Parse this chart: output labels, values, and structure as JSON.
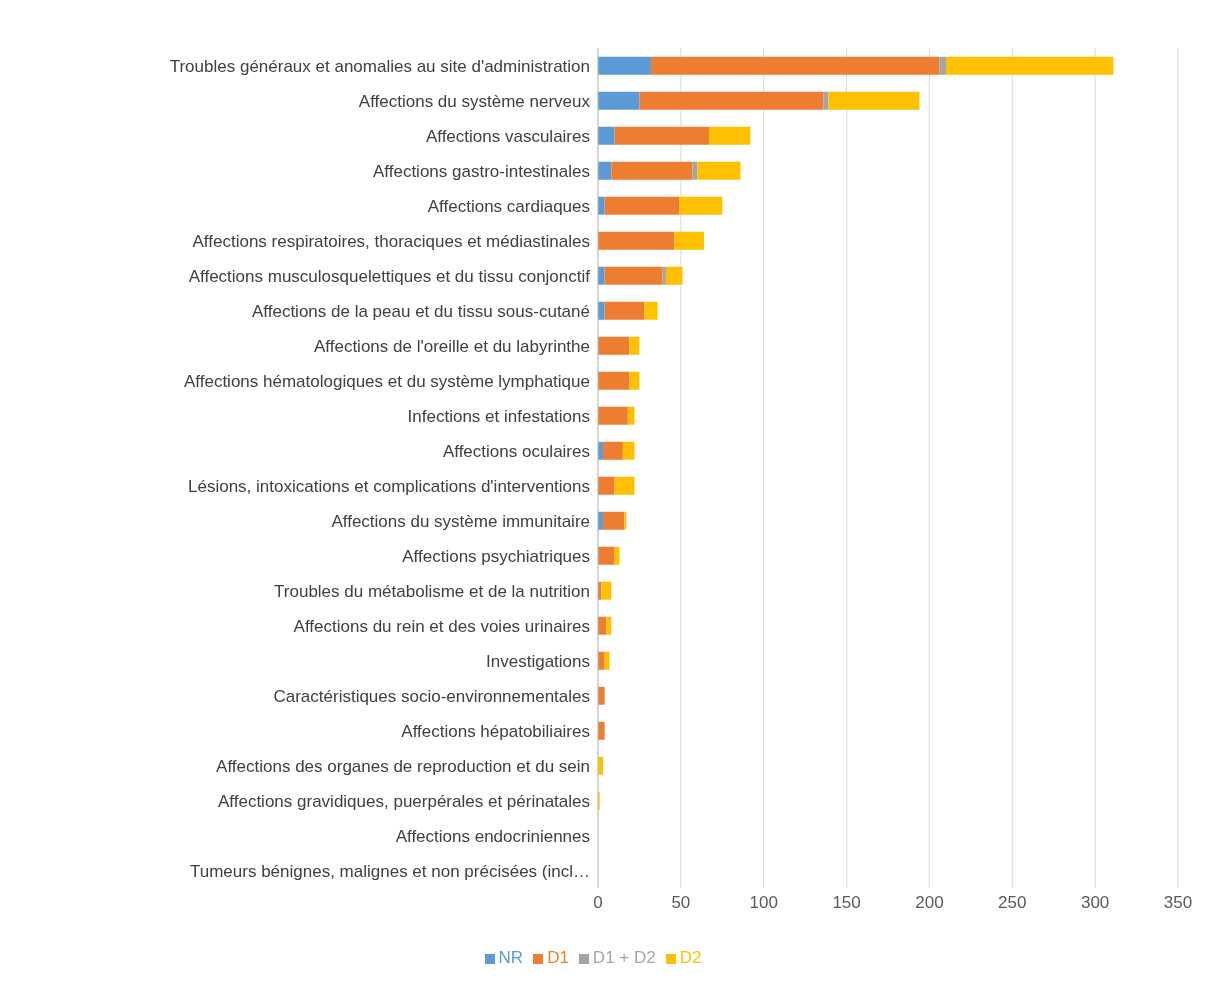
{
  "chart_data": {
    "type": "bar",
    "orientation": "horizontal",
    "stacked": true,
    "categories": [
      "Troubles généraux et anomalies au site d'administration",
      "Affections du système nerveux",
      "Affections vasculaires",
      "Affections gastro-intestinales",
      "Affections cardiaques",
      "Affections respiratoires, thoraciques et médiastinales",
      "Affections musculosquelettiques et du tissu conjonctif",
      "Affections de la peau et du tissu sous-cutané",
      "Affections de l'oreille et du labyrinthe",
      "Affections hématologiques et du système lymphatique",
      "Infections et infestations",
      "Affections oculaires",
      "Lésions, intoxications et complications d'interventions",
      "Affections du système immunitaire",
      "Affections psychiatriques",
      "Troubles du métabolisme et de la nutrition",
      "Affections du rein et des voies urinaires",
      "Investigations",
      "Caractéristiques socio-environnementales",
      "Affections hépatobiliaires",
      "Affections des organes de reproduction et du sein",
      "Affections gravidiques, puerpérales et périnatales",
      "Affections endocriniennes",
      "Tumeurs bénignes, malignes et non précisées (incl…"
    ],
    "series": [
      {
        "name": "NR",
        "color": "#5b9bd5",
        "values": [
          32,
          25,
          10,
          8,
          4,
          0,
          4,
          4,
          0,
          0,
          0,
          3,
          0,
          3,
          0,
          0,
          0,
          0,
          0,
          0,
          0,
          0,
          0,
          0
        ]
      },
      {
        "name": "D1",
        "color": "#ed7d31",
        "values": [
          174,
          111,
          57,
          49,
          45,
          46,
          35,
          24,
          19,
          19,
          18,
          12,
          10,
          13,
          10,
          2,
          5,
          4,
          4,
          4,
          0,
          0,
          0,
          0
        ]
      },
      {
        "name": "D1 + D2",
        "color": "#a5a5a5",
        "values": [
          4,
          3,
          0,
          3,
          0,
          0,
          2,
          0,
          0,
          0,
          0,
          0,
          0,
          0,
          0,
          0,
          0,
          0,
          0,
          0,
          0,
          0,
          0,
          0
        ]
      },
      {
        "name": "D2",
        "color": "#ffc000",
        "values": [
          101,
          55,
          25,
          26,
          26,
          18,
          10,
          8,
          6,
          6,
          4,
          7,
          12,
          1,
          3,
          6,
          3,
          3,
          0,
          0,
          3,
          1,
          0,
          0
        ]
      }
    ],
    "xlim": [
      0,
      350
    ],
    "xticks": [
      0,
      50,
      100,
      150,
      200,
      250,
      300,
      350
    ],
    "grid": "x",
    "legend": "bottom"
  }
}
